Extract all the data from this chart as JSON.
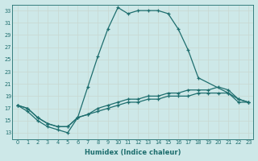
{
  "xlabel": "Humidex (Indice chaleur)",
  "background_color": "#cde8e8",
  "grid_color": "#b8d8d8",
  "line_color": "#1e6e6e",
  "xlim": [
    -0.5,
    23.5
  ],
  "ylim": [
    12,
    34
  ],
  "yticks": [
    13,
    15,
    17,
    19,
    21,
    23,
    25,
    27,
    29,
    31,
    33
  ],
  "xticks": [
    0,
    1,
    2,
    3,
    4,
    5,
    6,
    7,
    8,
    9,
    10,
    11,
    12,
    13,
    14,
    15,
    16,
    17,
    18,
    19,
    20,
    21,
    22,
    23
  ],
  "series": [
    {
      "x": [
        0,
        1,
        2,
        3,
        4,
        5,
        6,
        7,
        8,
        9,
        10,
        11,
        12,
        13,
        14,
        15,
        16,
        17,
        18,
        21,
        22,
        23
      ],
      "y": [
        17.5,
        16.5,
        15.0,
        14.0,
        13.5,
        13.0,
        15.5,
        20.5,
        25.5,
        30.0,
        33.5,
        32.5,
        33.0,
        33.0,
        33.0,
        32.5,
        30.0,
        26.5,
        22.0,
        19.5,
        18.5,
        18.0
      ]
    },
    {
      "x": [
        0,
        1,
        2,
        3,
        4,
        5,
        6,
        7,
        8,
        9,
        10,
        11,
        12,
        13,
        14,
        15,
        16,
        17,
        18,
        19,
        20,
        21,
        22,
        23
      ],
      "y": [
        17.5,
        17.0,
        15.5,
        14.5,
        14.0,
        14.0,
        15.5,
        16.0,
        17.0,
        17.5,
        18.0,
        18.5,
        18.5,
        19.0,
        19.0,
        19.5,
        19.5,
        20.0,
        20.0,
        20.0,
        20.5,
        20.0,
        18.5,
        18.0
      ]
    },
    {
      "x": [
        0,
        1,
        2,
        3,
        4,
        5,
        6,
        7,
        8,
        9,
        10,
        11,
        12,
        13,
        14,
        15,
        16,
        17,
        18,
        19,
        20,
        21,
        22,
        23
      ],
      "y": [
        17.5,
        17.0,
        15.5,
        14.5,
        14.0,
        14.0,
        15.5,
        16.0,
        16.5,
        17.0,
        17.5,
        18.0,
        18.0,
        18.5,
        18.5,
        19.0,
        19.0,
        19.0,
        19.5,
        19.5,
        19.5,
        19.5,
        18.0,
        18.0
      ]
    }
  ]
}
